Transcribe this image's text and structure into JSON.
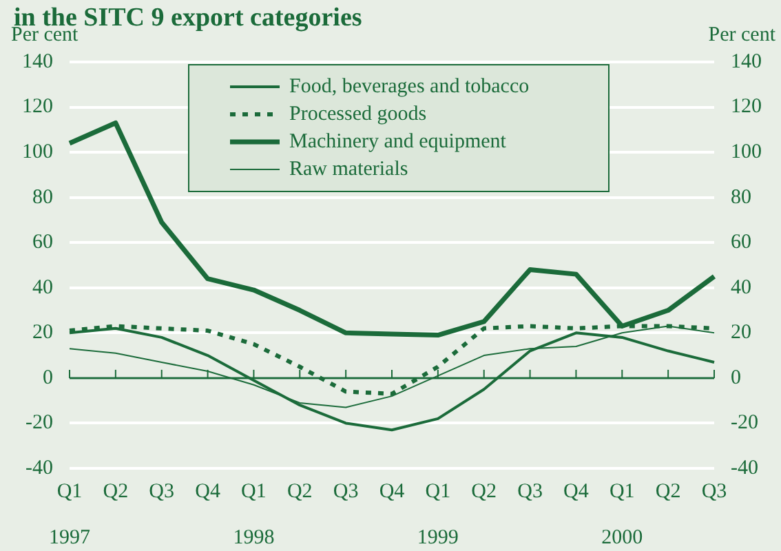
{
  "chart_data": {
    "type": "line",
    "title": "in the SITC 9 export categories",
    "ylabel": "Per cent",
    "y2label": "Per cent",
    "categories": [
      "Q1",
      "Q2",
      "Q3",
      "Q4",
      "Q1",
      "Q2",
      "Q3",
      "Q4",
      "Q1",
      "Q2",
      "Q3",
      "Q4",
      "Q1",
      "Q2",
      "Q3"
    ],
    "annotations": [
      "1997",
      "1998",
      "1999",
      "2000"
    ],
    "series": [
      {
        "name": "Food, beverages and tobacco",
        "color": "#1b6b3a",
        "line_style": "solid",
        "values": [
          20,
          22,
          18,
          10,
          -1,
          -12,
          -20,
          -23,
          -18,
          -5,
          12,
          20,
          18,
          12,
          7
        ]
      },
      {
        "name": "Processed goods",
        "color": "#1b6b3a",
        "line_style": "dotted",
        "values": [
          21,
          23,
          22,
          21,
          15,
          5,
          -6,
          -7,
          5,
          22,
          23,
          22,
          23,
          23,
          22
        ]
      },
      {
        "name": "Machinery and equipment",
        "color": "#1b6b3a",
        "line_style": "solid",
        "values": [
          104,
          113,
          69,
          44,
          39,
          30,
          20,
          19.5,
          19,
          25,
          48,
          46,
          23,
          30,
          45
        ]
      },
      {
        "name": "Raw materials",
        "color": "#1b6b3a",
        "line_style": "solid",
        "values": [
          13,
          11,
          7,
          3,
          -3,
          -11,
          -13,
          -8,
          1,
          10,
          13,
          14,
          20,
          23,
          20
        ]
      }
    ],
    "ylim": [
      -40,
      140
    ],
    "yticks": [
      -40,
      -20,
      0,
      20,
      40,
      60,
      80,
      100,
      120,
      140
    ],
    "y2lim": [
      -40,
      140
    ],
    "y2ticks": [
      -40,
      -20,
      0,
      20,
      40,
      60,
      80,
      100,
      120,
      140
    ],
    "ref_lines": [
      {
        "axis": "y",
        "value": 0,
        "color": "#1b6b3a"
      }
    ],
    "grid": "y",
    "legend": "top",
    "marker": "none"
  }
}
